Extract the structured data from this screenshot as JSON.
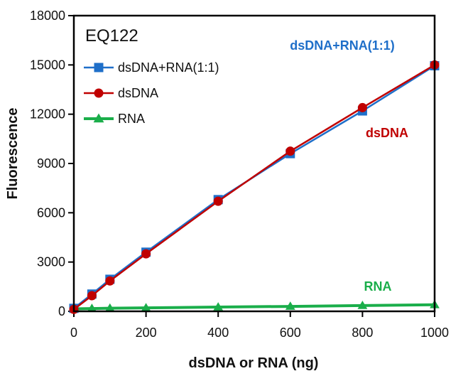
{
  "chart_data": {
    "type": "line",
    "title": "EQ122",
    "xlabel": "dsDNA or RNA (ng)",
    "ylabel": "Fluorescence",
    "xlim": [
      0,
      1000
    ],
    "ylim": [
      0,
      18000
    ],
    "xticks": [
      0,
      200,
      400,
      600,
      800,
      1000
    ],
    "yticks": [
      0,
      3000,
      6000,
      9000,
      12000,
      15000,
      18000
    ],
    "grid": false,
    "legend_position": "top-left",
    "series": [
      {
        "name": "dsDNA+RNA(1:1)",
        "color": "#1f6fc9",
        "marker": "square",
        "x": [
          0,
          50,
          100,
          200,
          400,
          600,
          800,
          1000
        ],
        "values": [
          180,
          1050,
          1950,
          3600,
          6800,
          9600,
          12200,
          14950
        ]
      },
      {
        "name": "dsDNA",
        "color": "#c00000",
        "marker": "circle",
        "x": [
          0,
          50,
          100,
          200,
          400,
          600,
          800,
          1000
        ],
        "values": [
          120,
          950,
          1850,
          3500,
          6700,
          9750,
          12400,
          15000
        ]
      },
      {
        "name": "RNA",
        "color": "#1aae4a",
        "marker": "triangle",
        "x": [
          0,
          50,
          100,
          200,
          400,
          600,
          800,
          1000
        ],
        "values": [
          150,
          170,
          190,
          210,
          260,
          300,
          350,
          400
        ]
      }
    ],
    "annotations": [
      {
        "text": "dsDNA+RNA(1:1)",
        "color": "#1f6fc9"
      },
      {
        "text": "dsDNA",
        "color": "#c00000"
      },
      {
        "text": "RNA",
        "color": "#1aae4a"
      }
    ]
  }
}
